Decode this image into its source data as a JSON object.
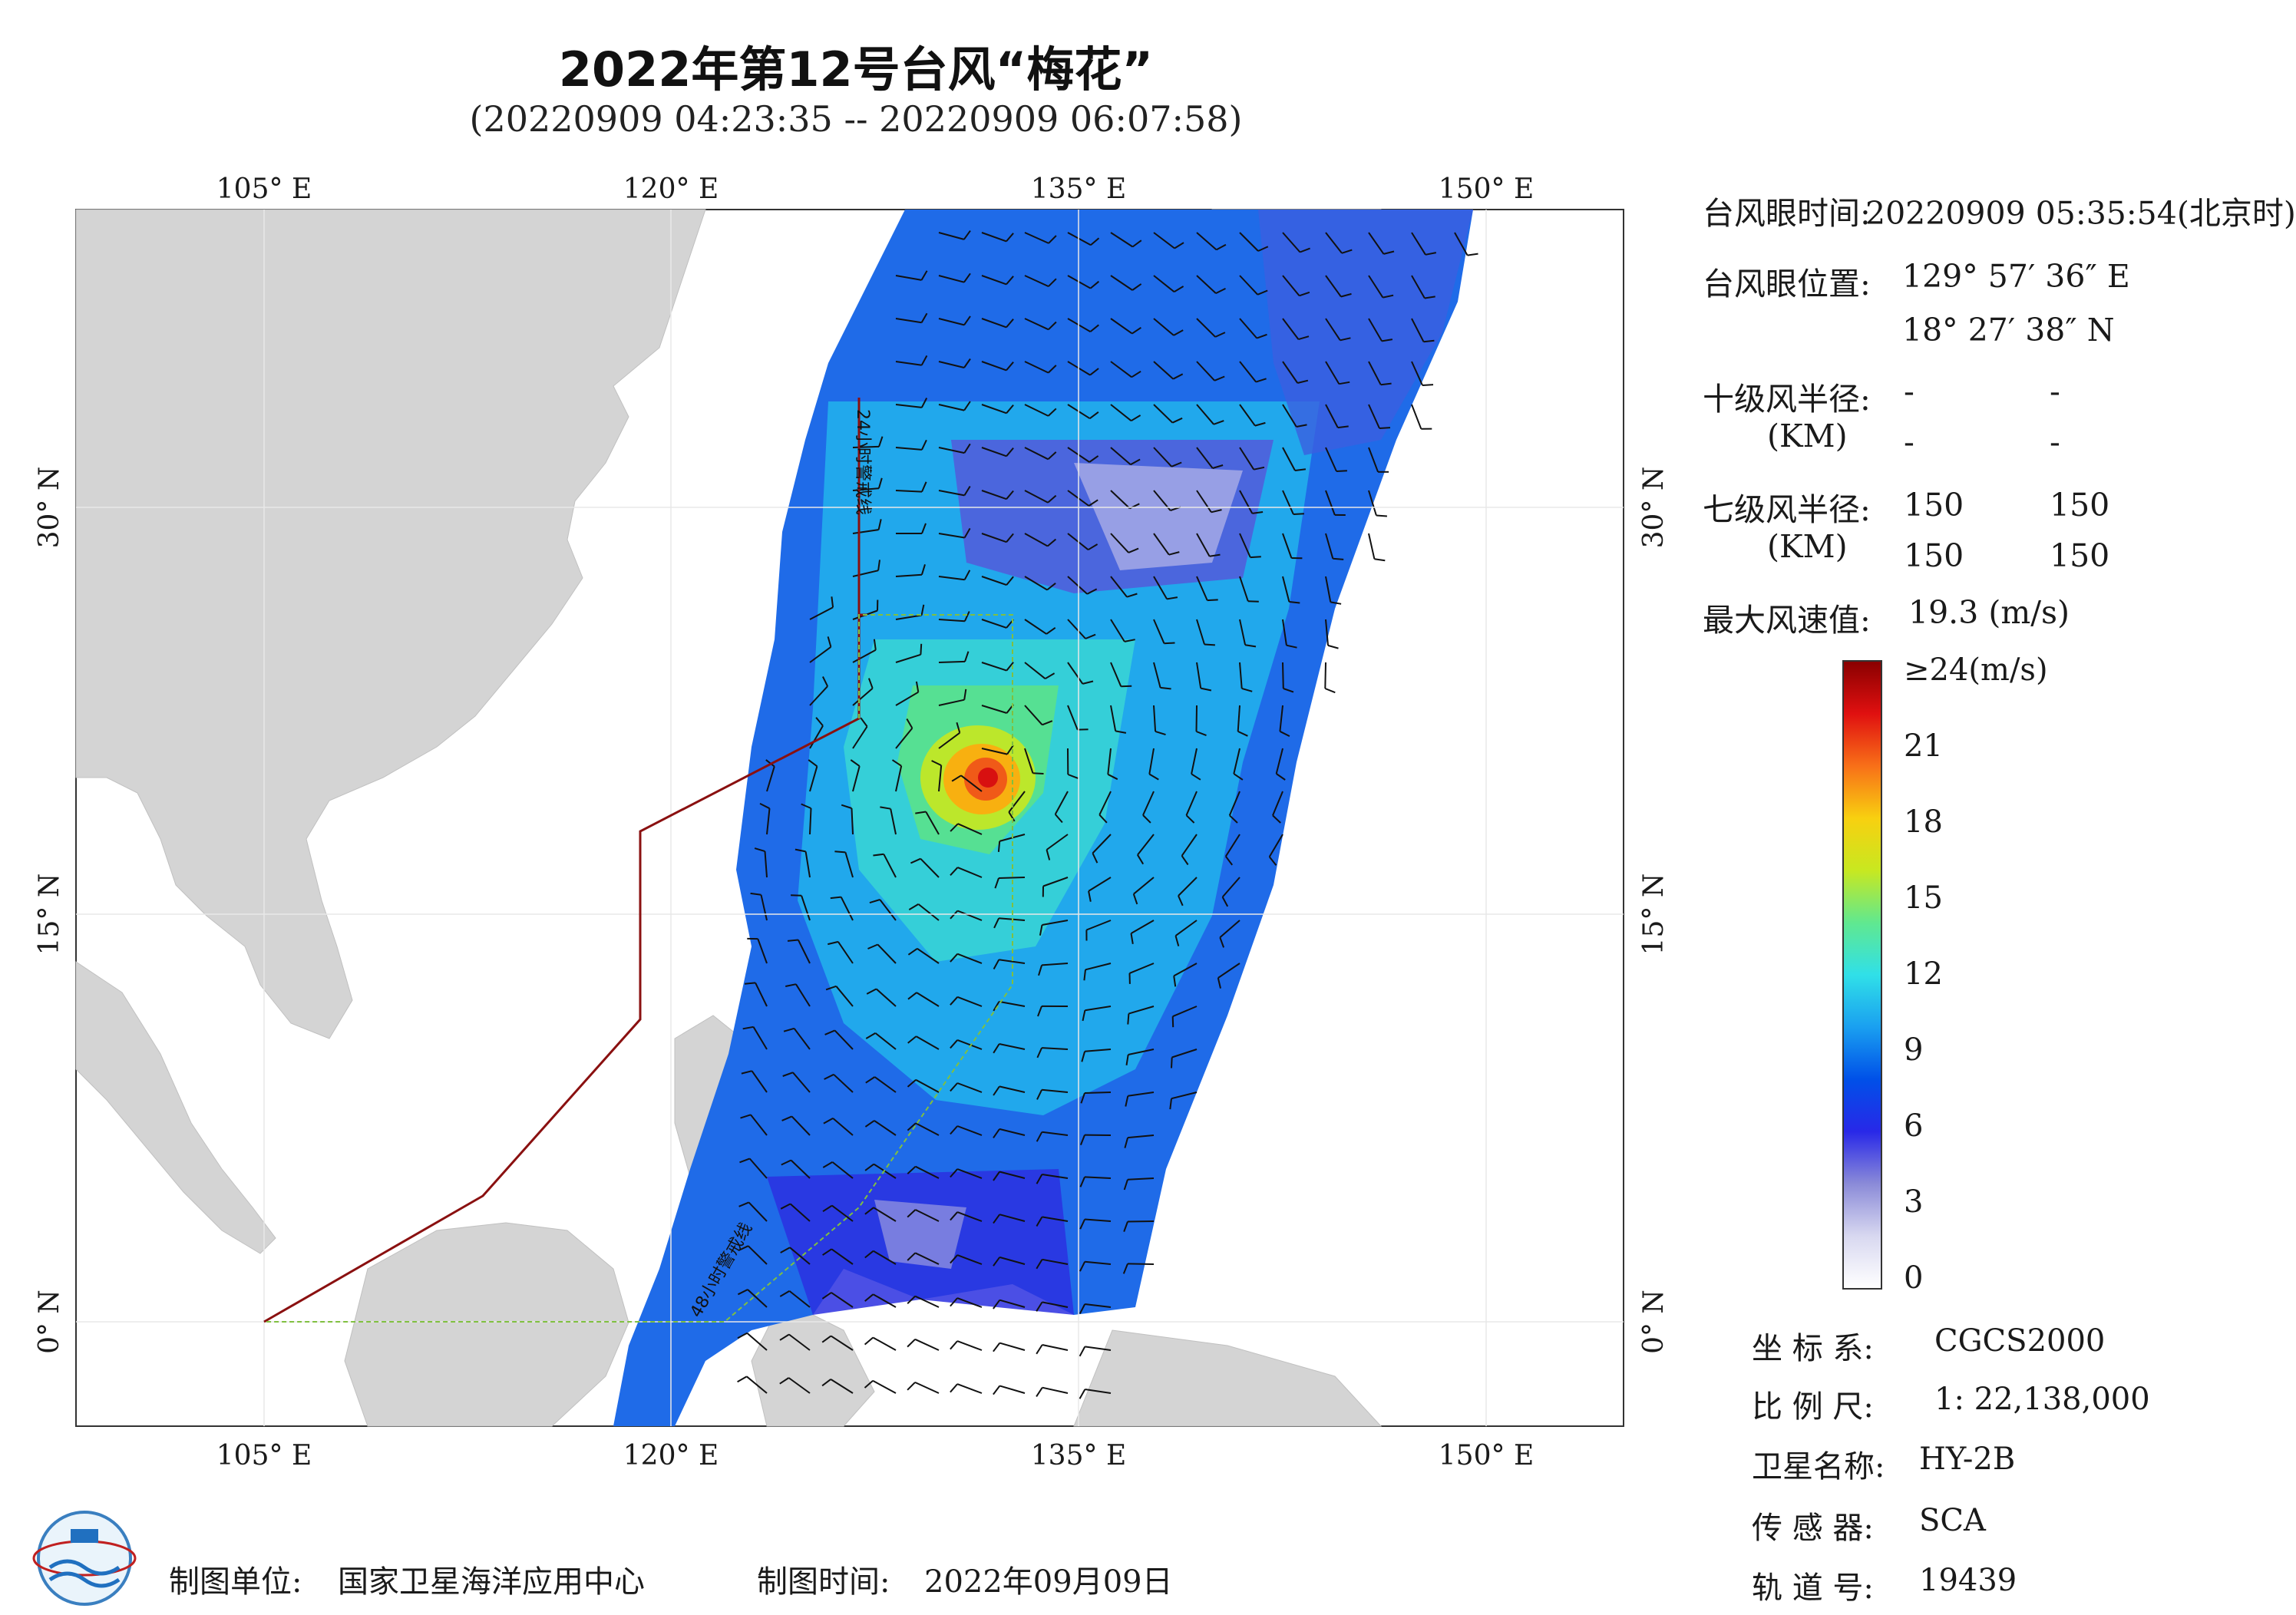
{
  "title": "2022年第12号台风“梅花”",
  "subtitle": "(20220909 04:23:35 -- 20220909 06:07:58)",
  "map": {
    "lon_ticks_top": [
      "105° E",
      "120° E",
      "135° E",
      "150° E"
    ],
    "lon_ticks_bottom": [
      "105° E",
      "120° E",
      "135° E",
      "150° E"
    ],
    "lat_ticks_left": [
      "30° N",
      "15° N",
      "0° N"
    ],
    "lat_ticks_right": [
      "30° N",
      "15° N",
      "0° N"
    ],
    "line_label_24h": "24小时警戒线",
    "line_label_48h": "48小时警戒线"
  },
  "info": {
    "eye_time_label": "台风眼时间:",
    "eye_time_value": "20220909 05:35:54(北京时)",
    "eye_pos_label": "台风眼位置:",
    "eye_lon": "129° 57′ 36″ E",
    "eye_lat": "18° 27′ 38″ N",
    "r10_label": "十级风半径:",
    "r10_unit": "(KM)",
    "r10_values": [
      "-",
      "-",
      "-",
      "-"
    ],
    "r7_label": "七级风半径:",
    "r7_unit": "(KM)",
    "r7_values": [
      "150",
      "150",
      "150",
      "150"
    ],
    "max_wind_label": "最大风速值:",
    "max_wind_value": "19.3 (m/s)"
  },
  "colorbar": {
    "ticks": [
      "≥24(m/s)",
      "21",
      "18",
      "15",
      "12",
      "9",
      "6",
      "3",
      "0"
    ],
    "colors": [
      "#ffffff",
      "#d8d8f0",
      "#8a8ad8",
      "#2828e8",
      "#0050e8",
      "#1aa0f0",
      "#30e0e8",
      "#60e890",
      "#c8e820",
      "#f8d010",
      "#f87018",
      "#e01010",
      "#8a0000"
    ]
  },
  "meta": {
    "coord_label": "坐 标 系:",
    "coord_value": "CGCS2000",
    "scale_label": "比 例 尺:",
    "scale_value": "1: 22,138,000",
    "satellite_label": "卫星名称:",
    "satellite_value": "HY-2B",
    "sensor_label": "传 感 器:",
    "sensor_value": "SCA",
    "orbit_label": "轨 道 号:",
    "orbit_value": "19439"
  },
  "footer": {
    "maker_label": "制图单位:",
    "maker_value": "国家卫星海洋应用中心",
    "time_label": "制图时间:",
    "time_value": "2022年09月09日"
  }
}
